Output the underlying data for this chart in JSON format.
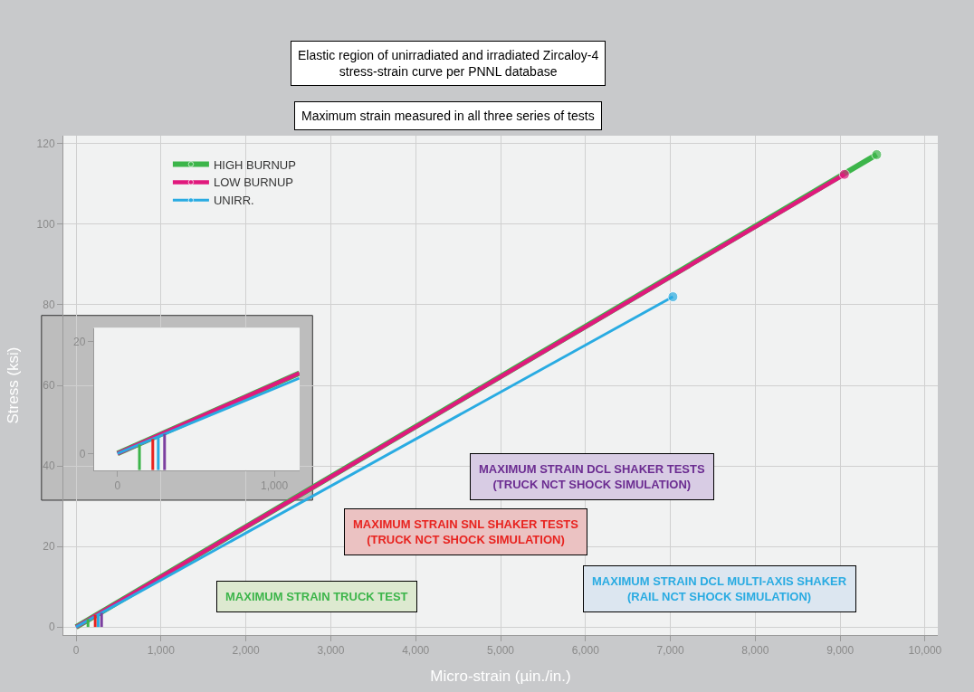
{
  "chart_data": [
    {
      "type": "line",
      "title": "Elastic region of unirradiated and irradiated Zircaloy-4\nstress-strain curve per PNNL database",
      "subtitle": "Maximum strain measured in all three series of tests",
      "xlabel": "Micro-strain (µin./in.)",
      "ylabel": "Stress (ksi)",
      "series": [
        {
          "name": "HIGH BURNUP",
          "color": "#3cb54a",
          "x": [
            0,
            9430
          ],
          "values": [
            0,
            117.3
          ]
        },
        {
          "name": "LOW BURNUP",
          "color": "#e0197d",
          "x": [
            0,
            9050
          ],
          "values": [
            0,
            112.4
          ]
        },
        {
          "name": "UNIRR.",
          "color": "#29abe2",
          "x": [
            0,
            7030
          ],
          "values": [
            0,
            82
          ]
        },
        {
          "color": "#3cb54a",
          "x": [
            140,
            140
          ],
          "values": [
            0,
            2
          ],
          "marker": "none"
        },
        {
          "color": "#e8231f",
          "x": [
            225,
            225
          ],
          "values": [
            0,
            3
          ],
          "marker": "none"
        },
        {
          "color": "#29abe2",
          "x": [
            260,
            260
          ],
          "values": [
            0,
            3
          ],
          "marker": "none"
        },
        {
          "color": "#7b3fa0",
          "x": [
            300,
            300
          ],
          "values": [
            0,
            3.5
          ],
          "marker": "none"
        }
      ],
      "marker": "circle",
      "legend": "top left",
      "grid": true,
      "xlim": [
        -150,
        10150
      ],
      "ylim": [
        -2,
        122
      ],
      "xticks": [
        0,
        {
          "value": 1000,
          "label": "1,000"
        },
        {
          "value": 2000,
          "label": "2,000"
        },
        {
          "value": 3000,
          "label": "3,000"
        },
        {
          "value": 4000,
          "label": "4,000"
        },
        {
          "value": 5000,
          "label": "5,000"
        },
        {
          "value": 6000,
          "label": "6,000"
        },
        {
          "value": 7000,
          "label": "7,000"
        },
        {
          "value": 8000,
          "label": "8,000"
        },
        {
          "value": 9000,
          "label": "9,000"
        },
        {
          "value": 10000,
          "label": "10,000"
        }
      ],
      "yticks": [
        0,
        20,
        40,
        60,
        80,
        100,
        120
      ],
      "annotations": [
        "MAXIMUM STRAIN DCL SHAKER TESTS\n(TRUCK NCT SHOCK SIMULATION)",
        "MAXIMUM STRAIN SNL SHAKER TESTS\n(TRUCK NCT SHOCK SIMULATION)",
        "MAXIMUM STRAIN TRUCK TEST",
        "MAXIMUM STRAIN DCL MULTI-AXIS SHAKER\n(RAIL NCT SHOCK SIMULATION)"
      ]
    },
    {
      "type": "line",
      "grid": false,
      "series": [
        {
          "color": "#3cb54a",
          "x": [
            0,
            1160
          ],
          "values": [
            0,
            14.4
          ]
        },
        {
          "color": "#e0197d",
          "x": [
            0,
            1160
          ],
          "values": [
            0,
            14.4
          ]
        },
        {
          "color": "#29abe2",
          "x": [
            0,
            1160
          ],
          "values": [
            0,
            13.5
          ]
        },
        {
          "color": "#3cb54a",
          "x": [
            140,
            140
          ],
          "values": [
            -3,
            1.6
          ]
        },
        {
          "color": "#e8231f",
          "x": [
            225,
            225
          ],
          "values": [
            -3,
            2.6
          ]
        },
        {
          "color": "#29abe2",
          "x": [
            260,
            260
          ],
          "values": [
            -3,
            2.9
          ]
        },
        {
          "color": "#7b3fa0",
          "x": [
            300,
            300
          ],
          "values": [
            -3,
            3.5
          ]
        }
      ],
      "xlim": [
        -150,
        1160
      ],
      "ylim": [
        -3,
        22.5
      ],
      "xticks": [
        0,
        {
          "value": 1000,
          "label": "1,000"
        }
      ],
      "yticks": [
        0,
        20
      ]
    }
  ]
}
